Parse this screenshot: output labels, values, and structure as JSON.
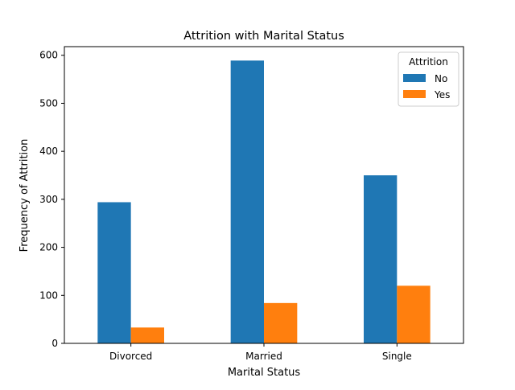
{
  "chart_data": {
    "type": "bar",
    "title": "Attrition with Marital Status",
    "xlabel": "Marital Status",
    "ylabel": "Frequency of Attrition",
    "categories": [
      "Divorced",
      "Married",
      "Single"
    ],
    "series": [
      {
        "name": "No",
        "values": [
          294,
          589,
          350
        ],
        "color": "#1f77b4"
      },
      {
        "name": "Yes",
        "values": [
          33,
          84,
          120
        ],
        "color": "#ff7f0e"
      }
    ],
    "ylim": [
      0,
      618
    ],
    "yticks": [
      0,
      100,
      200,
      300,
      400,
      500,
      600
    ],
    "grid": false,
    "legend": {
      "title": "Attrition",
      "placement": "top-right"
    }
  }
}
